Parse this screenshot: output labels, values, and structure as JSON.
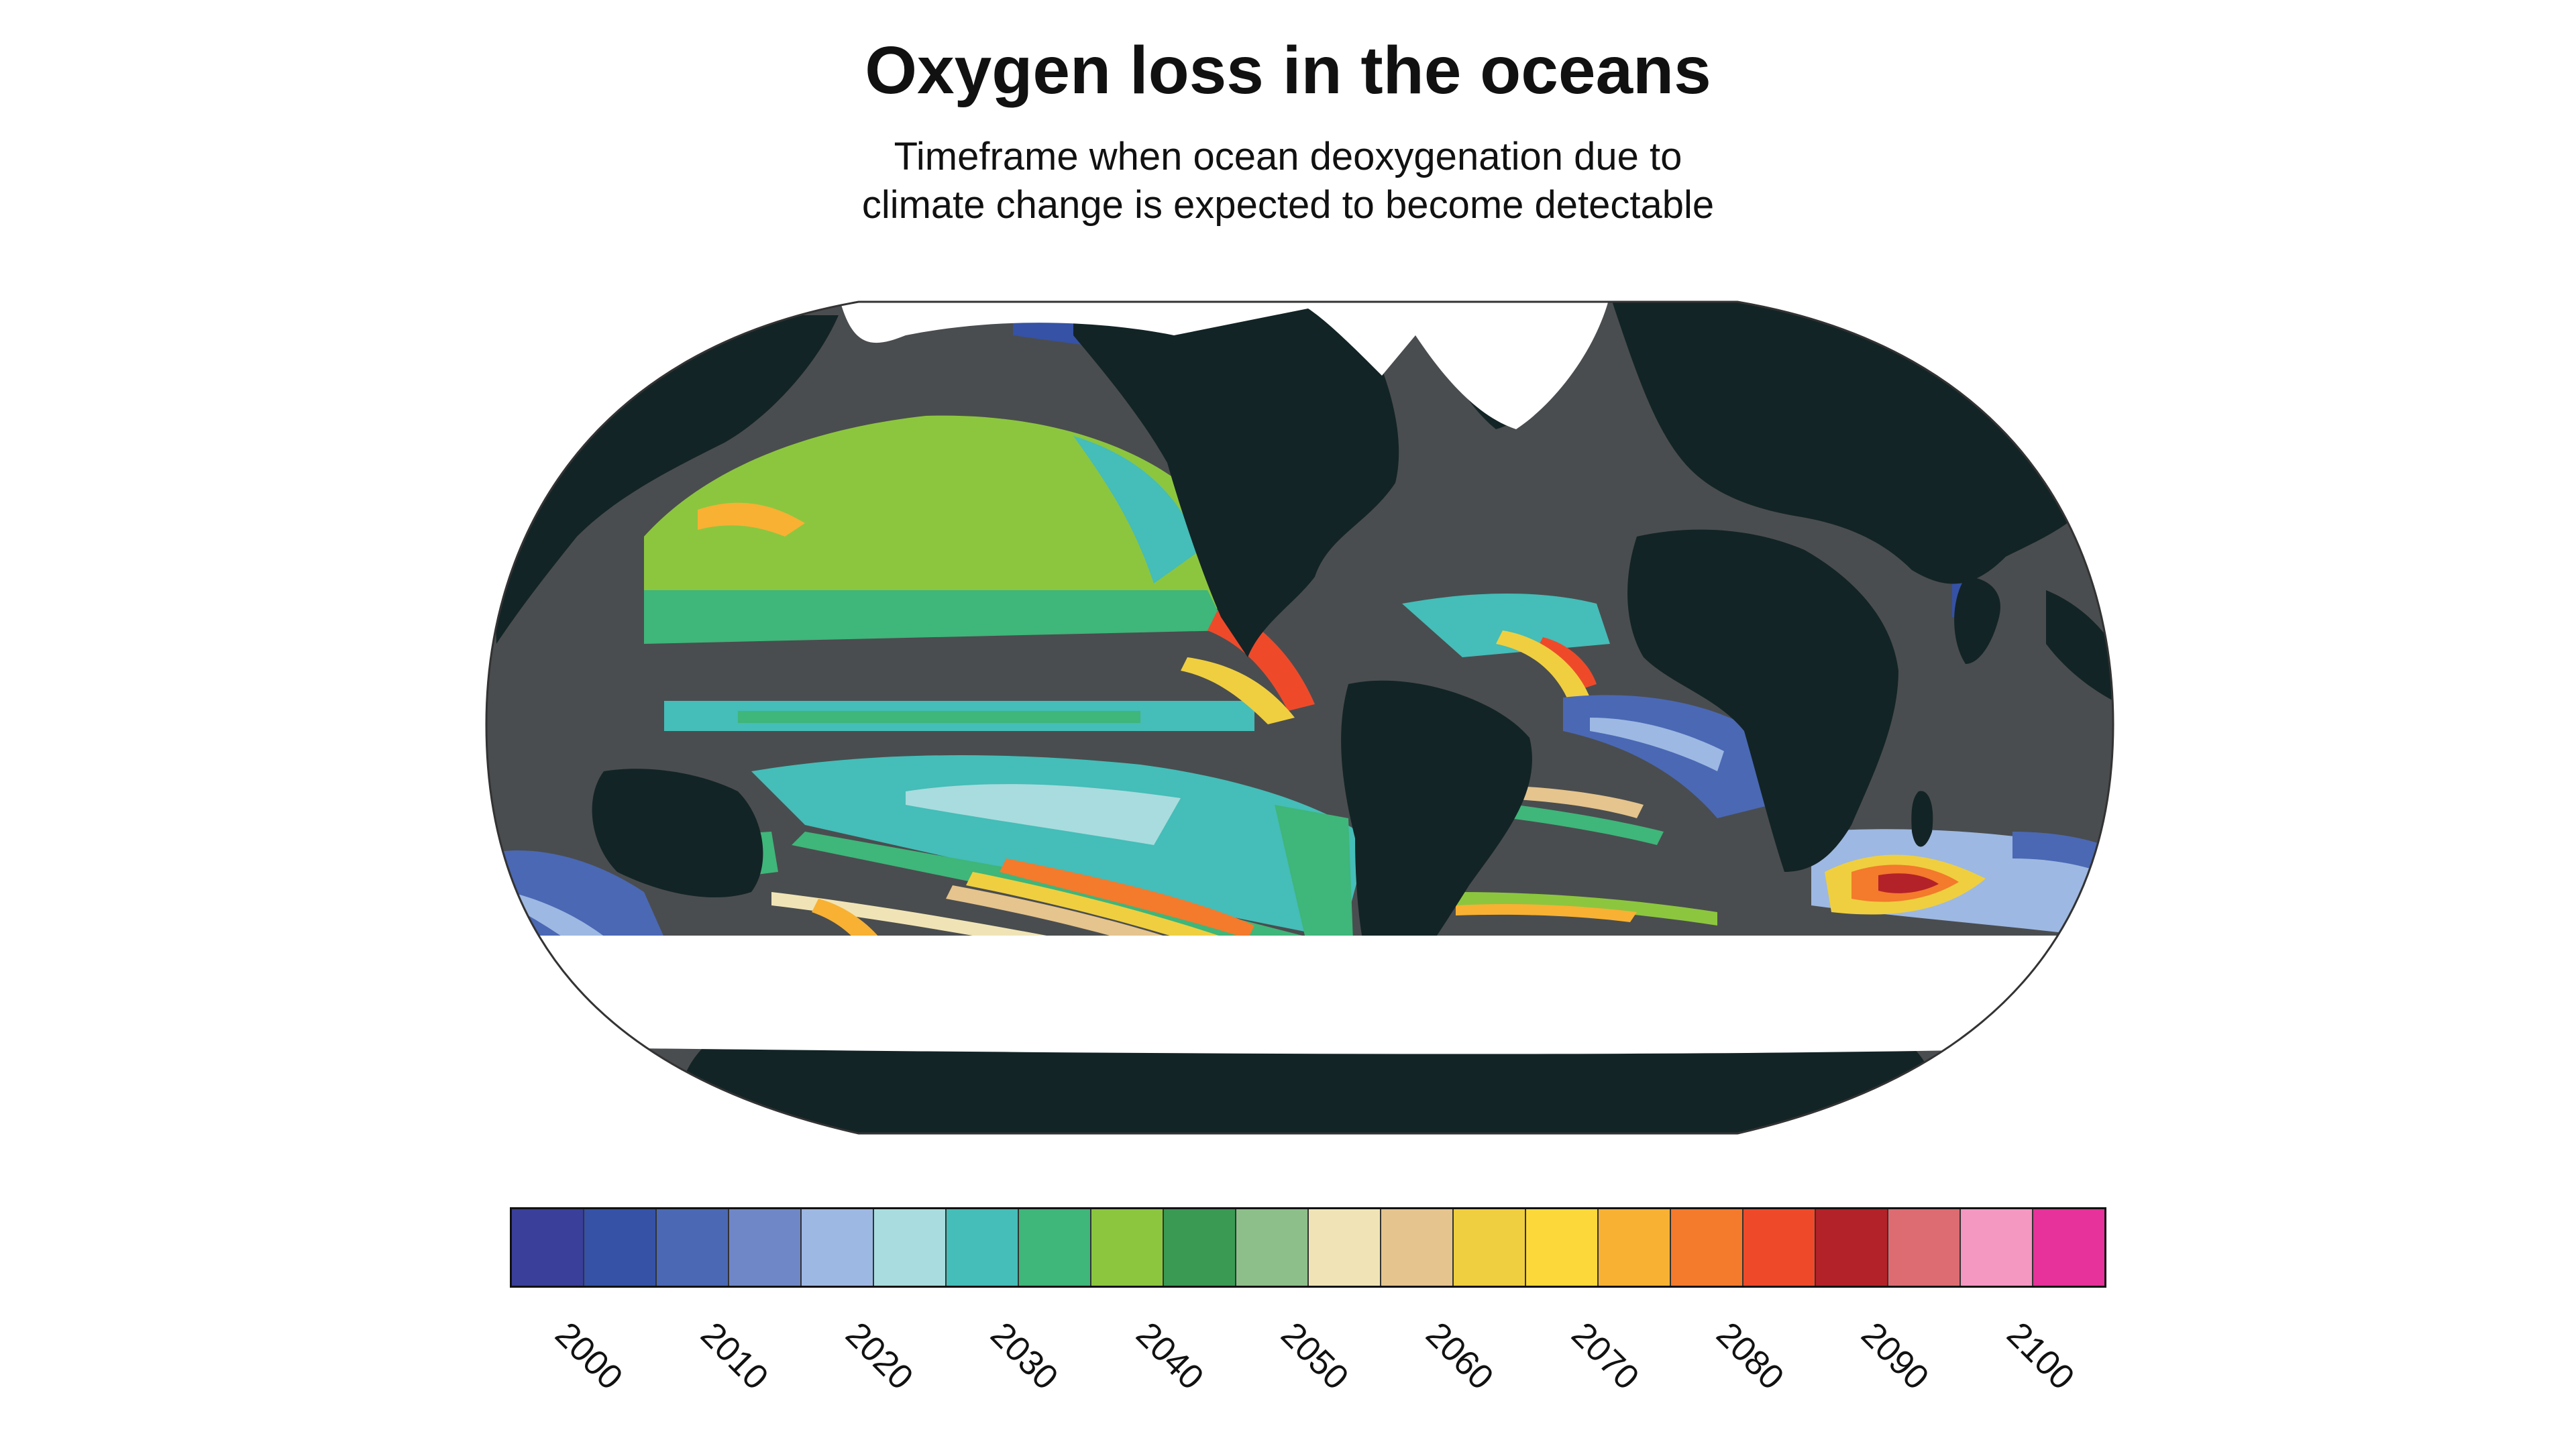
{
  "title": "Oxygen loss in the oceans",
  "subtitle_line1": "Timeframe when ocean deoxygenation due to",
  "subtitle_line2": "climate change is expected to become detectable",
  "colors": {
    "land": "#132426",
    "no_detection": "#4a4d4f",
    "ice": "#ffffff"
  },
  "colorbar": {
    "swatches": [
      "#3a3f9a",
      "#3552a6",
      "#4a68b4",
      "#6f87c6",
      "#9db8e2",
      "#a9dcde",
      "#45bdb8",
      "#3fb67a",
      "#8cc63f",
      "#3a9a54",
      "#8dbf8a",
      "#f0e4b6",
      "#e5c48d",
      "#efcf3f",
      "#fdd83a",
      "#f8b133",
      "#f47a2c",
      "#ee4a2a",
      "#b32228",
      "#dc6c72",
      "#f497c1",
      "#e6329a"
    ],
    "ticks": [
      "2000",
      "2010",
      "2020",
      "2030",
      "2040",
      "2050",
      "2060",
      "2070",
      "2080",
      "2090",
      "2100"
    ]
  }
}
